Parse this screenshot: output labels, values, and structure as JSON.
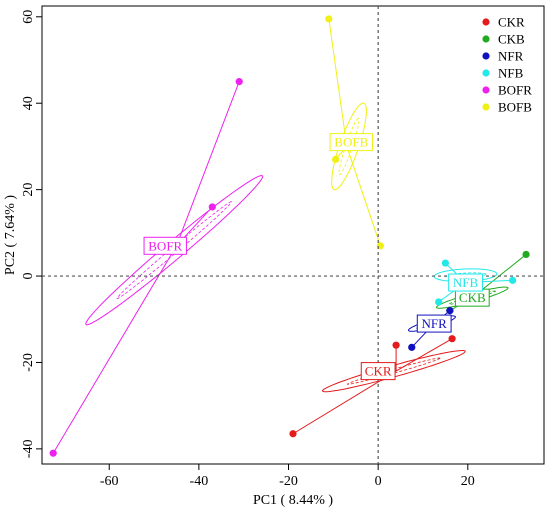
{
  "chart_data": {
    "type": "scatter",
    "title": "",
    "xlabel": "PC1 ( 8.44% )",
    "ylabel": "PC2 ( 7.64% )",
    "xlim": [
      -75,
      37
    ],
    "ylim": [
      -43.5,
      62.5
    ],
    "xticks": [
      -60,
      -40,
      -20,
      0,
      20
    ],
    "yticks": [
      -40,
      -20,
      0,
      20,
      40,
      60
    ],
    "xtick_labels": [
      "-60",
      "-40",
      "-20",
      "0",
      "20"
    ],
    "ytick_labels": [
      "-40",
      "-20",
      "0",
      "20",
      "40",
      "60"
    ],
    "reference_lines": {
      "x": 0,
      "y": 0
    },
    "grid": false,
    "legend_position": "top-right",
    "series": [
      {
        "name": "CKR",
        "color": "#e41a1c",
        "label_position": [
          0,
          -22
        ],
        "centroid": [
          4,
          -22
        ],
        "ellipse": {
          "cx": 3.5,
          "cy": -22,
          "rx": 18,
          "ry": 2.2,
          "angle_deg": 28
        },
        "points": [
          [
            -19,
            -36.5
          ],
          [
            4,
            -16
          ],
          [
            16.5,
            -14.5
          ]
        ]
      },
      {
        "name": "CKB",
        "color": "#1faa1f",
        "label_position": [
          21,
          -5
        ],
        "centroid": [
          21,
          -5
        ],
        "ellipse": {
          "cx": 21,
          "cy": -5,
          "rx": 9,
          "ry": 1.6,
          "angle_deg": 28
        },
        "points": [
          [
            33,
            5
          ],
          [
            16,
            -8
          ]
        ]
      },
      {
        "name": "NFR",
        "color": "#1010c0",
        "label_position": [
          12.5,
          -11
        ],
        "centroid": [
          12.5,
          -11
        ],
        "ellipse": {
          "cx": 12,
          "cy": -11,
          "rx": 6,
          "ry": 1.4,
          "angle_deg": 30
        },
        "points": [
          [
            7.5,
            -16.5
          ],
          [
            16,
            -8
          ]
        ]
      },
      {
        "name": "NFB",
        "color": "#22e8e8",
        "label_position": [
          19.5,
          -1.5
        ],
        "centroid": [
          19.5,
          -1.5
        ],
        "ellipse": {
          "cx": 19.5,
          "cy": 0.2,
          "rx": 7,
          "ry": 2.6,
          "angle_deg": 5
        },
        "points": [
          [
            15,
            3
          ],
          [
            30,
            -1
          ],
          [
            13.5,
            -6
          ]
        ]
      },
      {
        "name": "BOFR",
        "color": "#ee22ee",
        "label_position": [
          -47.5,
          7
        ],
        "centroid": [
          -45,
          7
        ],
        "ellipse": {
          "cx": -45.5,
          "cy": 6,
          "rx": 37,
          "ry": 2.6,
          "angle_deg": 58
        },
        "points": [
          [
            -31,
            45
          ],
          [
            -37,
            16
          ],
          [
            -72.5,
            -41
          ]
        ]
      },
      {
        "name": "BOFB",
        "color": "#f0f015",
        "label_position": [
          -6,
          31
        ],
        "centroid": [
          -7,
          30
        ],
        "ellipse": {
          "cx": -6.5,
          "cy": 30,
          "rx": 18.5,
          "ry": 2.2,
          "angle_deg": 80
        },
        "points": [
          [
            -11,
            59.5
          ],
          [
            -9.5,
            27
          ],
          [
            0.5,
            7
          ]
        ]
      }
    ]
  }
}
